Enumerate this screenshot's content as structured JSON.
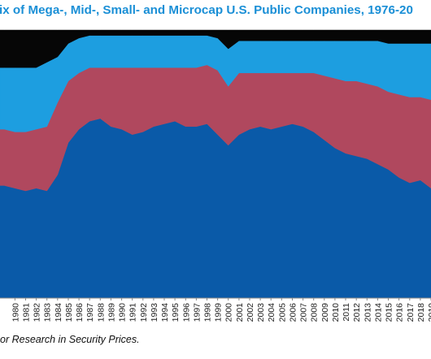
{
  "header": {
    "title": "ix of Mega-, Mid-, Small- and Microcap U.S. Public Companies, 1976-20"
  },
  "footer": {
    "source": "or Research in Security Prices."
  },
  "colors": {
    "mega": "#0a5aa8",
    "mid": "#b0485e",
    "small": "#1d9ee0",
    "micro": "#060606"
  },
  "chart_data": {
    "type": "area",
    "stacked": true,
    "ylim": [
      0,
      100
    ],
    "grid": false,
    "x": [
      1979,
      1980,
      1981,
      1982,
      1983,
      1984,
      1985,
      1986,
      1987,
      1988,
      1989,
      1990,
      1991,
      1992,
      1993,
      1994,
      1995,
      1996,
      1997,
      1998,
      1999,
      2000,
      2001,
      2002,
      2003,
      2004,
      2005,
      2006,
      2007,
      2008,
      2009,
      2010,
      2011,
      2012,
      2013,
      2014,
      2015,
      2016,
      2017,
      2018,
      2019
    ],
    "x_tick_labels": [
      "1980",
      "1981",
      "1982",
      "1983",
      "1984",
      "1985",
      "1986",
      "1987",
      "1988",
      "1989",
      "1990",
      "1991",
      "1992",
      "1993",
      "1994",
      "1995",
      "1996",
      "1997",
      "1998",
      "1999",
      "2000",
      "2001",
      "2002",
      "2003",
      "2004",
      "2005",
      "2006",
      "2007",
      "2008",
      "2009",
      "2010",
      "2011",
      "2012",
      "2013",
      "2014",
      "2015",
      "2016",
      "2017",
      "2018",
      "2019"
    ],
    "series": [
      {
        "key": "mega",
        "values": [
          42,
          41,
          40,
          41,
          40,
          46,
          58,
          63,
          66,
          67,
          64,
          63,
          61,
          62,
          64,
          65,
          66,
          64,
          64,
          65,
          61,
          57,
          61,
          63,
          64,
          63,
          64,
          65,
          64,
          62,
          59,
          56,
          54,
          53,
          52,
          50,
          48,
          45,
          43,
          44,
          41
        ]
      },
      {
        "key": "mid",
        "values": [
          21,
          21,
          22,
          22,
          24,
          27,
          23,
          21,
          20,
          19,
          22,
          23,
          25,
          24,
          22,
          21,
          20,
          22,
          22,
          22,
          24,
          22,
          23,
          21,
          20,
          21,
          20,
          19,
          20,
          22,
          24,
          26,
          27,
          28,
          28,
          29,
          29,
          31,
          32,
          31,
          33
        ]
      },
      {
        "key": "small",
        "values": [
          23,
          24,
          24,
          23,
          24,
          17,
          14,
          13,
          12,
          12,
          12,
          12,
          12,
          12,
          12,
          12,
          12,
          12,
          12,
          11,
          12,
          14,
          12,
          12,
          12,
          12,
          12,
          12,
          12,
          12,
          13,
          14,
          15,
          15,
          16,
          17,
          18,
          19,
          20,
          20,
          21
        ]
      },
      {
        "key": "micro",
        "values": [
          14,
          14,
          14,
          14,
          12,
          10,
          5,
          3,
          2,
          2,
          2,
          2,
          2,
          2,
          2,
          2,
          2,
          2,
          2,
          2,
          3,
          7,
          4,
          4,
          4,
          4,
          4,
          4,
          4,
          4,
          4,
          4,
          4,
          4,
          4,
          4,
          5,
          5,
          5,
          5,
          5
        ]
      }
    ]
  }
}
